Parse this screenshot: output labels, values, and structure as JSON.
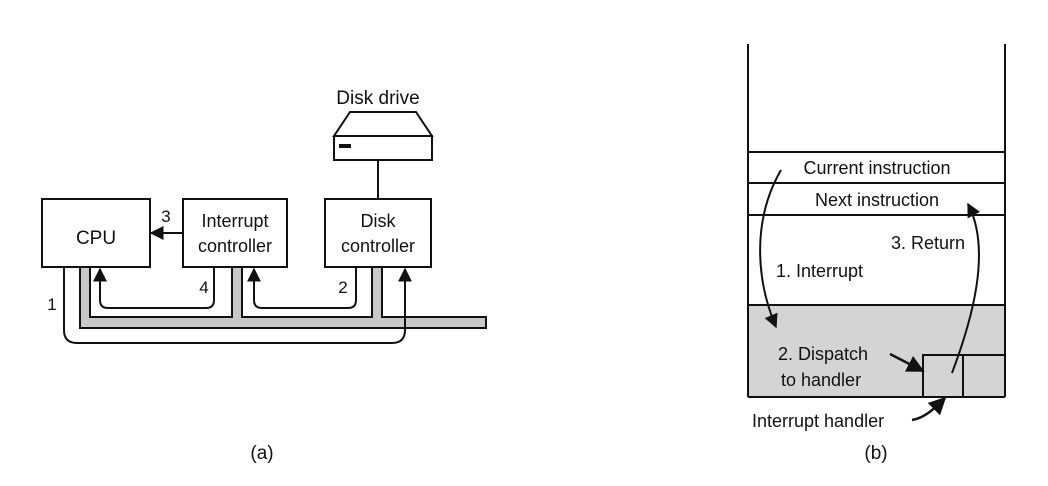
{
  "panel_a": {
    "disk_drive_label": "Disk drive",
    "cpu_label": "CPU",
    "interrupt_controller_line1": "Interrupt",
    "interrupt_controller_line2": "controller",
    "disk_controller_line1": "Disk",
    "disk_controller_line2": "controller",
    "step_1": "1",
    "step_2": "2",
    "step_3": "3",
    "step_4": "4",
    "caption": "(a)"
  },
  "panel_b": {
    "current_instruction": "Current instruction",
    "next_instruction": "Next instruction",
    "interrupt_label": "1. Interrupt",
    "dispatch_line1": "2. Dispatch",
    "dispatch_line2": "to handler",
    "return_label": "3. Return",
    "handler_label": "Interrupt handler",
    "caption": "(b)"
  },
  "colors": {
    "bus_fill": "#c8c8c8",
    "handler_area_fill": "#d4d4d4",
    "stroke": "#111111"
  }
}
